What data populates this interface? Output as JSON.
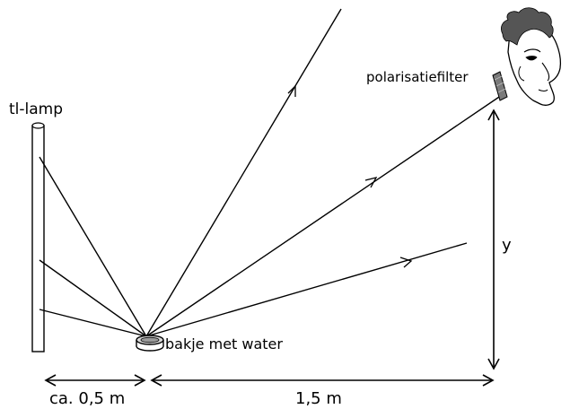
{
  "labels": {
    "lamp": "tl-lamp",
    "filter": "polarisatiefilter",
    "dish": "bakje met water",
    "height": "y",
    "distance_left": "ca. 0,5 m",
    "distance_right": "1,5 m"
  }
}
